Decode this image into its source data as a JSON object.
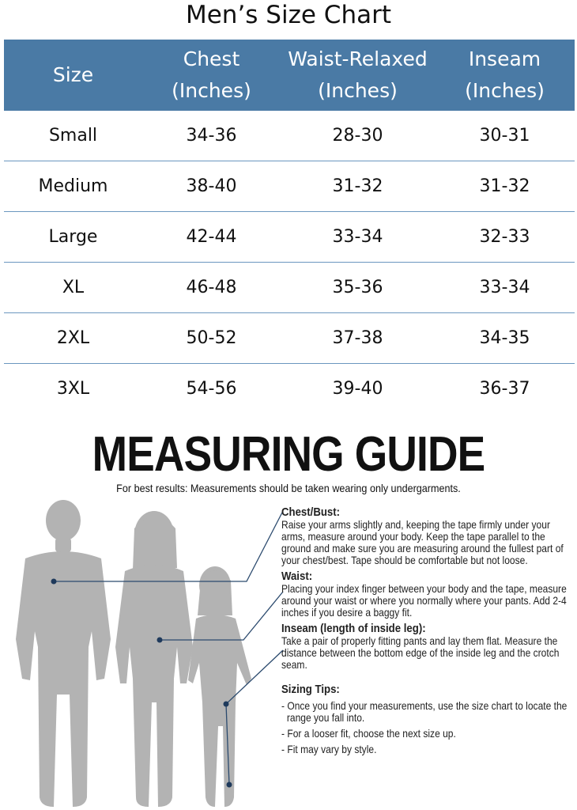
{
  "chart": {
    "title": "Men’s Size Chart",
    "headers": {
      "size": [
        "Size"
      ],
      "chest": [
        "Chest",
        "(Inches)"
      ],
      "waist": [
        "Waist-Relaxed",
        "(Inches)"
      ],
      "inseam": [
        "Inseam",
        "(Inches)"
      ]
    },
    "rows": [
      {
        "size": "Small",
        "chest": "34-36",
        "waist": "28-30",
        "inseam": "30-31"
      },
      {
        "size": "Medium",
        "chest": "38-40",
        "waist": "31-32",
        "inseam": "31-32"
      },
      {
        "size": "Large",
        "chest": "42-44",
        "waist": "33-34",
        "inseam": "32-33"
      },
      {
        "size": "XL",
        "chest": "46-48",
        "waist": "35-36",
        "inseam": "33-34"
      },
      {
        "size": "2XL",
        "chest": "50-52",
        "waist": "37-38",
        "inseam": "34-35"
      },
      {
        "size": "3XL",
        "chest": "54-56",
        "waist": "39-40",
        "inseam": "36-37"
      }
    ],
    "header_color": "#4a7aa5",
    "divider_color": "#6b97bf"
  },
  "guide": {
    "title": "MEASURING GUIDE",
    "subtitle": "For best results: Measurements should be taken wearing only undergarments.",
    "chest": {
      "heading": "Chest/Bust:",
      "text": "Raise your arms slightly and, keeping the tape firmly under your arms, measure around your body. Keep the tape parallel to the ground and make sure you are measuring around the fullest part of your chest/best. Tape should be comfortable but not loose."
    },
    "waist": {
      "heading": "Waist:",
      "text": "Placing your index finger between your body and the tape, measure around your waist or where you normally where your pants. Add 2-4 inches if you desire a baggy fit."
    },
    "inseam": {
      "heading": "Inseam (length of inside leg):",
      "text": "Take a pair of properly fitting pants and lay them flat. Measure the distance between the bottom edge of the inside leg and the crotch seam."
    },
    "sizing_tips": {
      "heading": "Sizing Tips:",
      "items": [
        "- Once you find your measurements, use the size chart to locate the range you fall into.",
        "- For a looser fit, choose the next size up.",
        "- Fit may vary by style."
      ]
    },
    "figure_color": "#b3b3b3",
    "line_color": "#2b4a6e",
    "dot_color": "#1f3a5c"
  }
}
